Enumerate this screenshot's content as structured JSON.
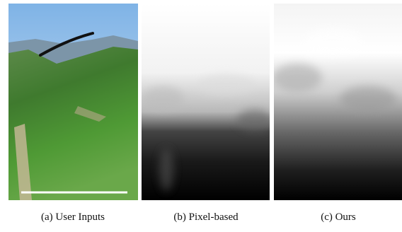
{
  "figure": {
    "panels": [
      {
        "caption": "(a) User Inputs"
      },
      {
        "caption": "(b) Pixel-based"
      },
      {
        "caption": "(c) Ours"
      }
    ]
  }
}
